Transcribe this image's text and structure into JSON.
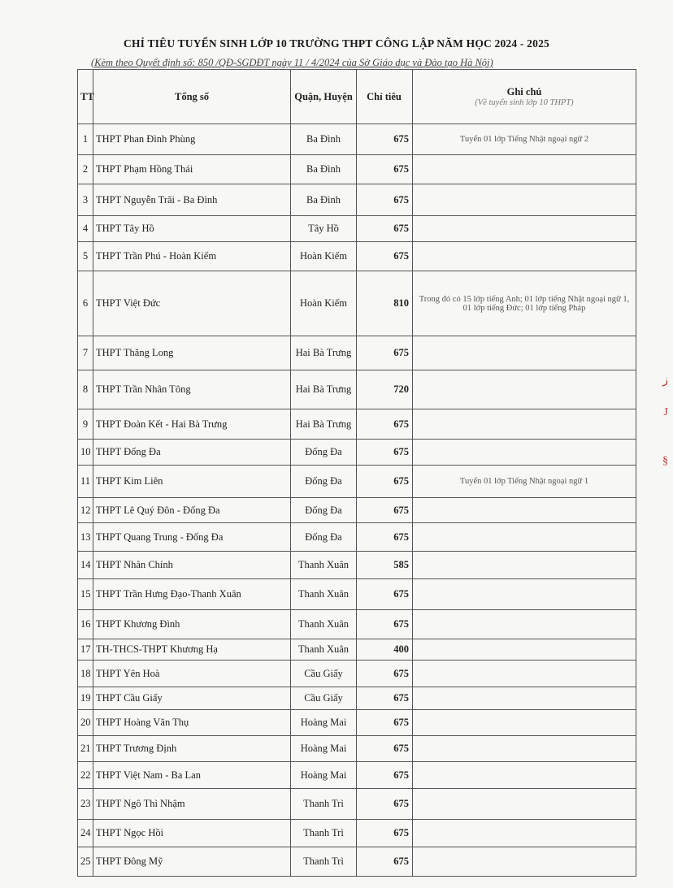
{
  "title": "CHỈ TIÊU TUYỂN SINH LỚP 10 TRƯỜNG THPT CÔNG LẬP NĂM HỌC 2024 - 2025",
  "subtitle": "(Kèm theo Quyết định số: 850 /QĐ-SGDĐT ngày 11 / 4/2024 của Sở Giáo dục và Đào tạo Hà Nội)",
  "table": {
    "headers": {
      "tt": "TT",
      "name": "Tổng số",
      "district": "Quận, Huyện",
      "quota": "Chỉ tiêu",
      "note": "Ghi chú",
      "note_sub": "(Về tuyển sinh lớp 10 THPT)"
    },
    "rows": [
      {
        "tt": "1",
        "name": "THPT Phan Đình Phùng",
        "district": "Ba Đình",
        "quota": "675",
        "note": "Tuyển 01 lớp Tiếng Nhật ngoại ngữ 2"
      },
      {
        "tt": "2",
        "name": "THPT Phạm Hồng Thái",
        "district": "Ba Đình",
        "quota": "675",
        "note": ""
      },
      {
        "tt": "3",
        "name": "THPT Nguyễn Trãi - Ba Đình",
        "district": "Ba Đình",
        "quota": "675",
        "note": ""
      },
      {
        "tt": "4",
        "name": "THPT Tây Hồ",
        "district": "Tây Hồ",
        "quota": "675",
        "note": ""
      },
      {
        "tt": "5",
        "name": "THPT Trần Phú - Hoàn Kiếm",
        "district": "Hoàn Kiếm",
        "quota": "675",
        "note": ""
      },
      {
        "tt": "6",
        "name": "THPT Việt Đức",
        "district": "Hoàn Kiếm",
        "quota": "810",
        "note": "Trong đó có 15 lớp tiếng Anh; 01 lớp tiếng Nhật ngoại ngữ 1, 01 lớp tiếng Đức; 01 lớp tiếng Pháp"
      },
      {
        "tt": "7",
        "name": "THPT Thăng Long",
        "district": "Hai Bà Trưng",
        "quota": "675",
        "note": ""
      },
      {
        "tt": "8",
        "name": "THPT Trần Nhân Tông",
        "district": "Hai Bà Trưng",
        "quota": "720",
        "note": ""
      },
      {
        "tt": "9",
        "name": "THPT Đoàn Kết - Hai Bà Trưng",
        "district": "Hai Bà Trưng",
        "quota": "675",
        "note": ""
      },
      {
        "tt": "10",
        "name": "THPT Đống Đa",
        "district": "Đống Đa",
        "quota": "675",
        "note": ""
      },
      {
        "tt": "11",
        "name": "THPT Kim Liên",
        "district": "Đống Đa",
        "quota": "675",
        "note": "Tuyển 01 lớp Tiếng Nhật ngoại ngữ 1"
      },
      {
        "tt": "12",
        "name": "THPT Lê Quý Đôn - Đống Đa",
        "district": "Đống Đa",
        "quota": "675",
        "note": ""
      },
      {
        "tt": "13",
        "name": "THPT Quang Trung - Đống Đa",
        "district": "Đống Đa",
        "quota": "675",
        "note": ""
      },
      {
        "tt": "14",
        "name": "THPT Nhân Chính",
        "district": "Thanh Xuân",
        "quota": "585",
        "note": ""
      },
      {
        "tt": "15",
        "name": "THPT Trần Hưng Đạo-Thanh Xuân",
        "district": "Thanh Xuân",
        "quota": "675",
        "note": ""
      },
      {
        "tt": "16",
        "name": "THPT Khương Đình",
        "district": "Thanh Xuân",
        "quota": "675",
        "note": ""
      },
      {
        "tt": "17",
        "name": "TH-THCS-THPT Khương Hạ",
        "district": "Thanh Xuân",
        "quota": "400",
        "note": ""
      },
      {
        "tt": "18",
        "name": "THPT Yên Hoà",
        "district": "Cầu Giấy",
        "quota": "675",
        "note": ""
      },
      {
        "tt": "19",
        "name": "THPT Cầu Giấy",
        "district": "Cầu Giấy",
        "quota": "675",
        "note": ""
      },
      {
        "tt": "20",
        "name": "THPT Hoàng Văn Thụ",
        "district": "Hoàng Mai",
        "quota": "675",
        "note": ""
      },
      {
        "tt": "21",
        "name": "THPT Trương Định",
        "district": "Hoàng Mai",
        "quota": "675",
        "note": ""
      },
      {
        "tt": "22",
        "name": "THPT Việt Nam - Ba Lan",
        "district": "Hoàng Mai",
        "quota": "675",
        "note": ""
      },
      {
        "tt": "23",
        "name": "THPT Ngô Thì Nhậm",
        "district": "Thanh Trì",
        "quota": "675",
        "note": ""
      },
      {
        "tt": "24",
        "name": "THPT Ngọc Hồi",
        "district": "Thanh Trì",
        "quota": "675",
        "note": ""
      },
      {
        "tt": "25",
        "name": "THPT Đông Mỹ",
        "district": "Thanh Trì",
        "quota": "675",
        "note": ""
      }
    ]
  }
}
